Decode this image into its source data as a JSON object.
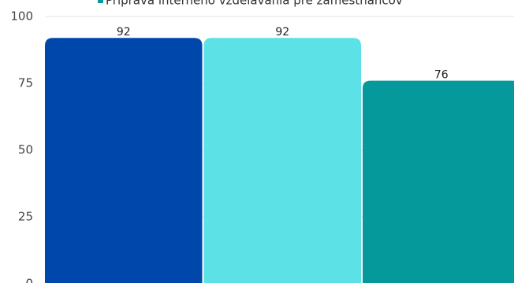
{
  "chart_data": {
    "type": "bar",
    "series": [
      {
        "color": "#0047ab",
        "values": [
          92
        ]
      },
      {
        "color": "#5ce1e6",
        "values": [
          92
        ]
      },
      {
        "name": "Príprava interného vzdelávania pre zamestnancov",
        "color": "#05999c",
        "values": [
          76
        ]
      }
    ],
    "ylim": [
      0,
      100
    ],
    "yticks": [
      0,
      25,
      50,
      75,
      100
    ],
    "grid": true
  }
}
